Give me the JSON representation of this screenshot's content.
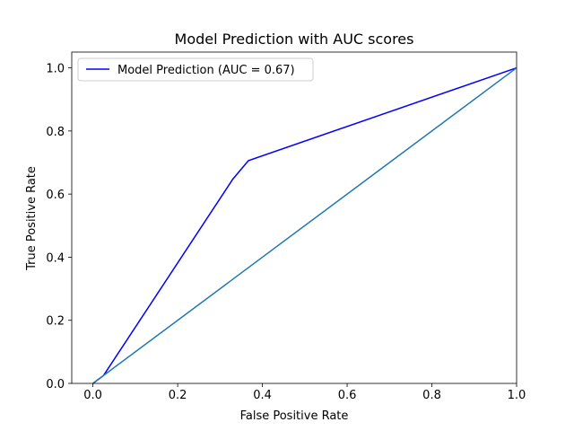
{
  "chart_data": {
    "type": "line",
    "title": "Model Prediction with AUC scores",
    "xlabel": "False Positive Rate",
    "ylabel": "True Positive Rate",
    "xlim": [
      -0.05,
      1.0
    ],
    "ylim": [
      0.0,
      1.05
    ],
    "xticks": [
      "0.0",
      "0.2",
      "0.4",
      "0.6",
      "0.8",
      "1.0"
    ],
    "yticks": [
      "0.0",
      "0.2",
      "0.4",
      "0.6",
      "0.8",
      "1.0"
    ],
    "grid": false,
    "legend_position": "top-left",
    "series": [
      {
        "name": "Model Prediction (AUC = 0.67)",
        "color": "#0000ff",
        "x": [
          0.0,
          0.025,
          0.33,
          0.367,
          1.0
        ],
        "y": [
          0.0,
          0.025,
          0.647,
          0.706,
          1.0
        ]
      },
      {
        "color": "#1f77b4",
        "x": [
          0.0,
          1.0
        ],
        "y": [
          0.0,
          1.0
        ]
      }
    ]
  }
}
